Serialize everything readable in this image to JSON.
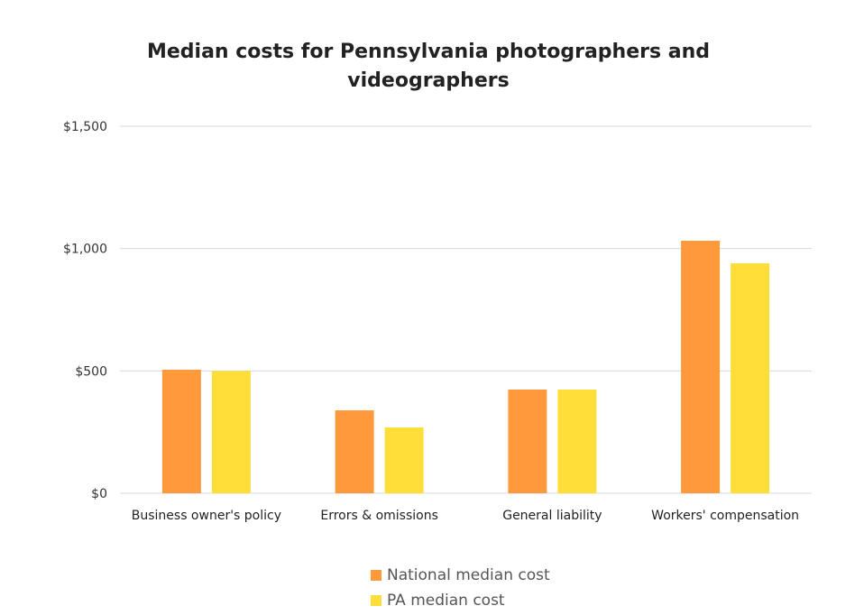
{
  "chart_data": {
    "type": "bar",
    "title": "Median costs for Pennsylvania photographers and videographers",
    "xlabel": "",
    "ylabel": "",
    "ylim": [
      0,
      1500
    ],
    "yticks": [
      0,
      500,
      1000,
      1500
    ],
    "ytick_labels": [
      "$0",
      "$500",
      "$1,000",
      "$1,500"
    ],
    "grid": true,
    "legend_position": "bottom",
    "categories": [
      "Business owner's policy",
      "Errors & omissions",
      "General liability",
      "Workers' compensation"
    ],
    "series": [
      {
        "name": "National median cost",
        "color": "#FF9A3C",
        "values": [
          505,
          339,
          424,
          1032
        ]
      },
      {
        "name": "PA median cost",
        "color": "#FFDE3A",
        "values": [
          500,
          269,
          424,
          940
        ]
      }
    ]
  }
}
